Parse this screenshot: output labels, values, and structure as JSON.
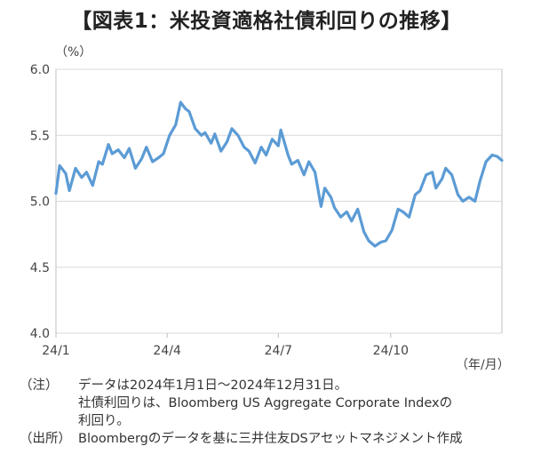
{
  "header": {
    "title": "【図表1：米投資適格社債利回りの推移】"
  },
  "notes": {
    "note_label": "（注）",
    "note_line1": "データは2024年1月1日～2024年12月31日。",
    "note_line2": "社債利回りは、Bloomberg US Aggregate Corporate Indexの",
    "note_line3": "利回り。",
    "source_label": "（出所）",
    "source_text": "Bloombergのデータを基に三井住友DSアセットマネジメント作成"
  },
  "colors": {
    "line": "#5b9bd5",
    "grid": "#d9d9d9",
    "axis": "#bfbfbf"
  },
  "chart_data": {
    "type": "line",
    "title": "",
    "ylabel": "（%）",
    "xlabel": "（年/月）",
    "ylim": [
      4.0,
      6.0
    ],
    "yticks": [
      "4.0",
      "4.5",
      "5.0",
      "5.5",
      "6.0"
    ],
    "xlim": [
      "2024-01-01",
      "2024-12-31"
    ],
    "xticks": [
      {
        "label": "24/1",
        "date": "2024-01-01"
      },
      {
        "label": "24/4",
        "date": "2024-04-01"
      },
      {
        "label": "24/7",
        "date": "2024-07-01"
      },
      {
        "label": "24/10",
        "date": "2024-10-01"
      }
    ],
    "grid": true,
    "series": [
      {
        "x": [
          "2024-01-01",
          "2024-01-04",
          "2024-01-09",
          "2024-01-12",
          "2024-01-17",
          "2024-01-22",
          "2024-01-26",
          "2024-01-31",
          "2024-02-05",
          "2024-02-08",
          "2024-02-13",
          "2024-02-16",
          "2024-02-21",
          "2024-02-26",
          "2024-03-01",
          "2024-03-06",
          "2024-03-11",
          "2024-03-15",
          "2024-03-20",
          "2024-03-25",
          "2024-03-29",
          "2024-04-03",
          "2024-04-08",
          "2024-04-12",
          "2024-04-16",
          "2024-04-19",
          "2024-04-24",
          "2024-04-29",
          "2024-05-02",
          "2024-05-07",
          "2024-05-10",
          "2024-05-15",
          "2024-05-20",
          "2024-05-24",
          "2024-05-29",
          "2024-06-03",
          "2024-06-07",
          "2024-06-12",
          "2024-06-17",
          "2024-06-21",
          "2024-06-26",
          "2024-07-01",
          "2024-07-03",
          "2024-07-09",
          "2024-07-12",
          "2024-07-17",
          "2024-07-22",
          "2024-07-26",
          "2024-07-31",
          "2024-08-05",
          "2024-08-08",
          "2024-08-13",
          "2024-08-16",
          "2024-08-21",
          "2024-08-26",
          "2024-08-30",
          "2024-09-04",
          "2024-09-09",
          "2024-09-13",
          "2024-09-18",
          "2024-09-23",
          "2024-09-27",
          "2024-10-02",
          "2024-10-07",
          "2024-10-11",
          "2024-10-16",
          "2024-10-21",
          "2024-10-25",
          "2024-10-30",
          "2024-11-04",
          "2024-11-07",
          "2024-11-12",
          "2024-11-15",
          "2024-11-20",
          "2024-11-25",
          "2024-11-29",
          "2024-12-04",
          "2024-12-09",
          "2024-12-13",
          "2024-12-18",
          "2024-12-23",
          "2024-12-27",
          "2024-12-31"
        ],
        "values": [
          5.06,
          5.27,
          5.21,
          5.08,
          5.25,
          5.18,
          5.22,
          5.12,
          5.3,
          5.28,
          5.43,
          5.36,
          5.39,
          5.33,
          5.4,
          5.25,
          5.32,
          5.41,
          5.3,
          5.33,
          5.36,
          5.5,
          5.58,
          5.75,
          5.7,
          5.68,
          5.55,
          5.5,
          5.52,
          5.44,
          5.51,
          5.38,
          5.45,
          5.55,
          5.5,
          5.41,
          5.38,
          5.29,
          5.41,
          5.35,
          5.47,
          5.42,
          5.54,
          5.35,
          5.28,
          5.31,
          5.2,
          5.3,
          5.22,
          4.96,
          5.1,
          5.03,
          4.95,
          4.88,
          4.92,
          4.85,
          4.94,
          4.77,
          4.7,
          4.66,
          4.69,
          4.7,
          4.78,
          4.94,
          4.92,
          4.88,
          5.05,
          5.08,
          5.2,
          5.22,
          5.1,
          5.17,
          5.25,
          5.2,
          5.05,
          5.0,
          5.03,
          5.0,
          5.15,
          5.3,
          5.35,
          5.34,
          5.31
        ]
      }
    ]
  }
}
